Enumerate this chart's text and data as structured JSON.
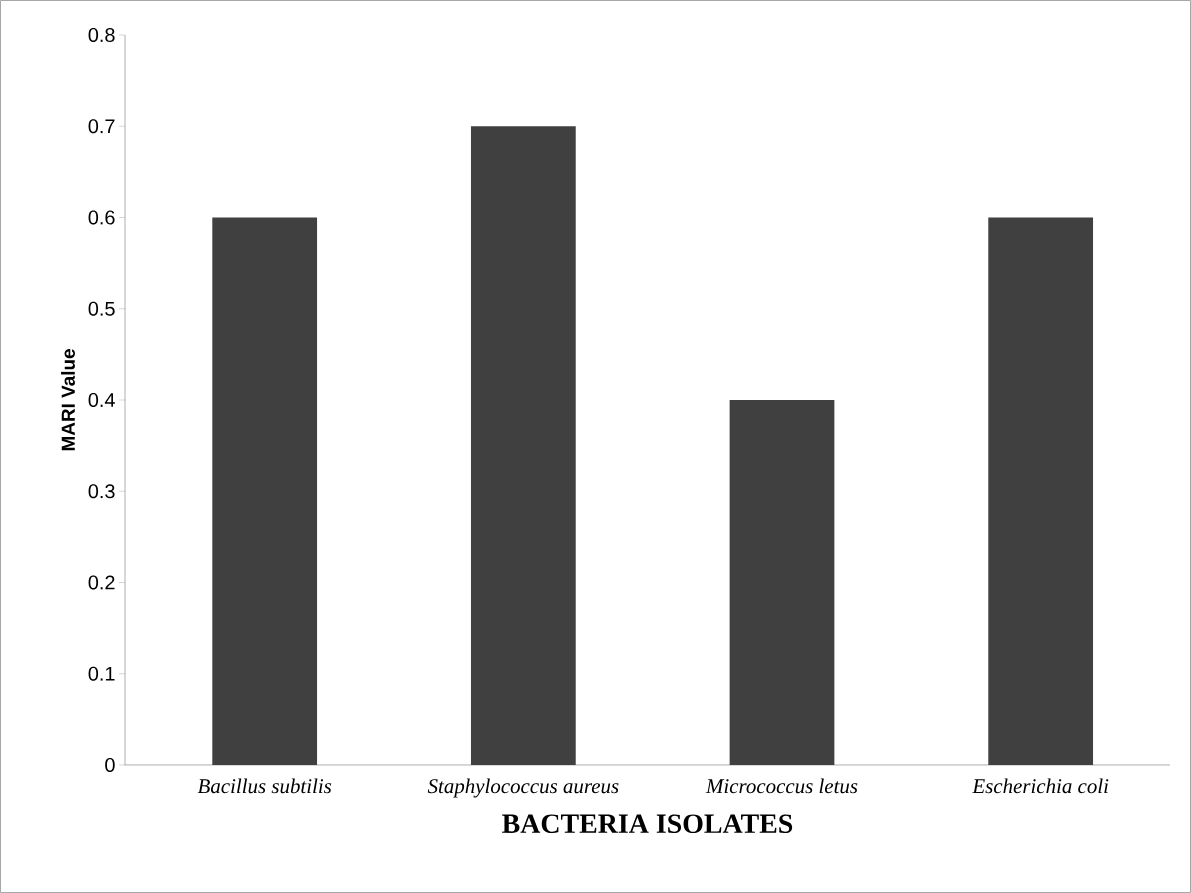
{
  "chart_data": {
    "type": "bar",
    "xlabel": "BACTERIA ISOLATES",
    "ylabel": "MARI Value",
    "categories": [
      "Bacillus subtilis",
      "Staphylococcus aureus",
      "Micrococcus letus",
      "Escherichia coli"
    ],
    "values": [
      0.6,
      0.7,
      0.4,
      0.6
    ],
    "color": "#404040",
    "ylim": [
      0,
      0.8
    ],
    "yticks": [
      0,
      0.1,
      0.2,
      0.3,
      0.4,
      0.5,
      0.6,
      0.7,
      0.8
    ],
    "grid": false
  }
}
